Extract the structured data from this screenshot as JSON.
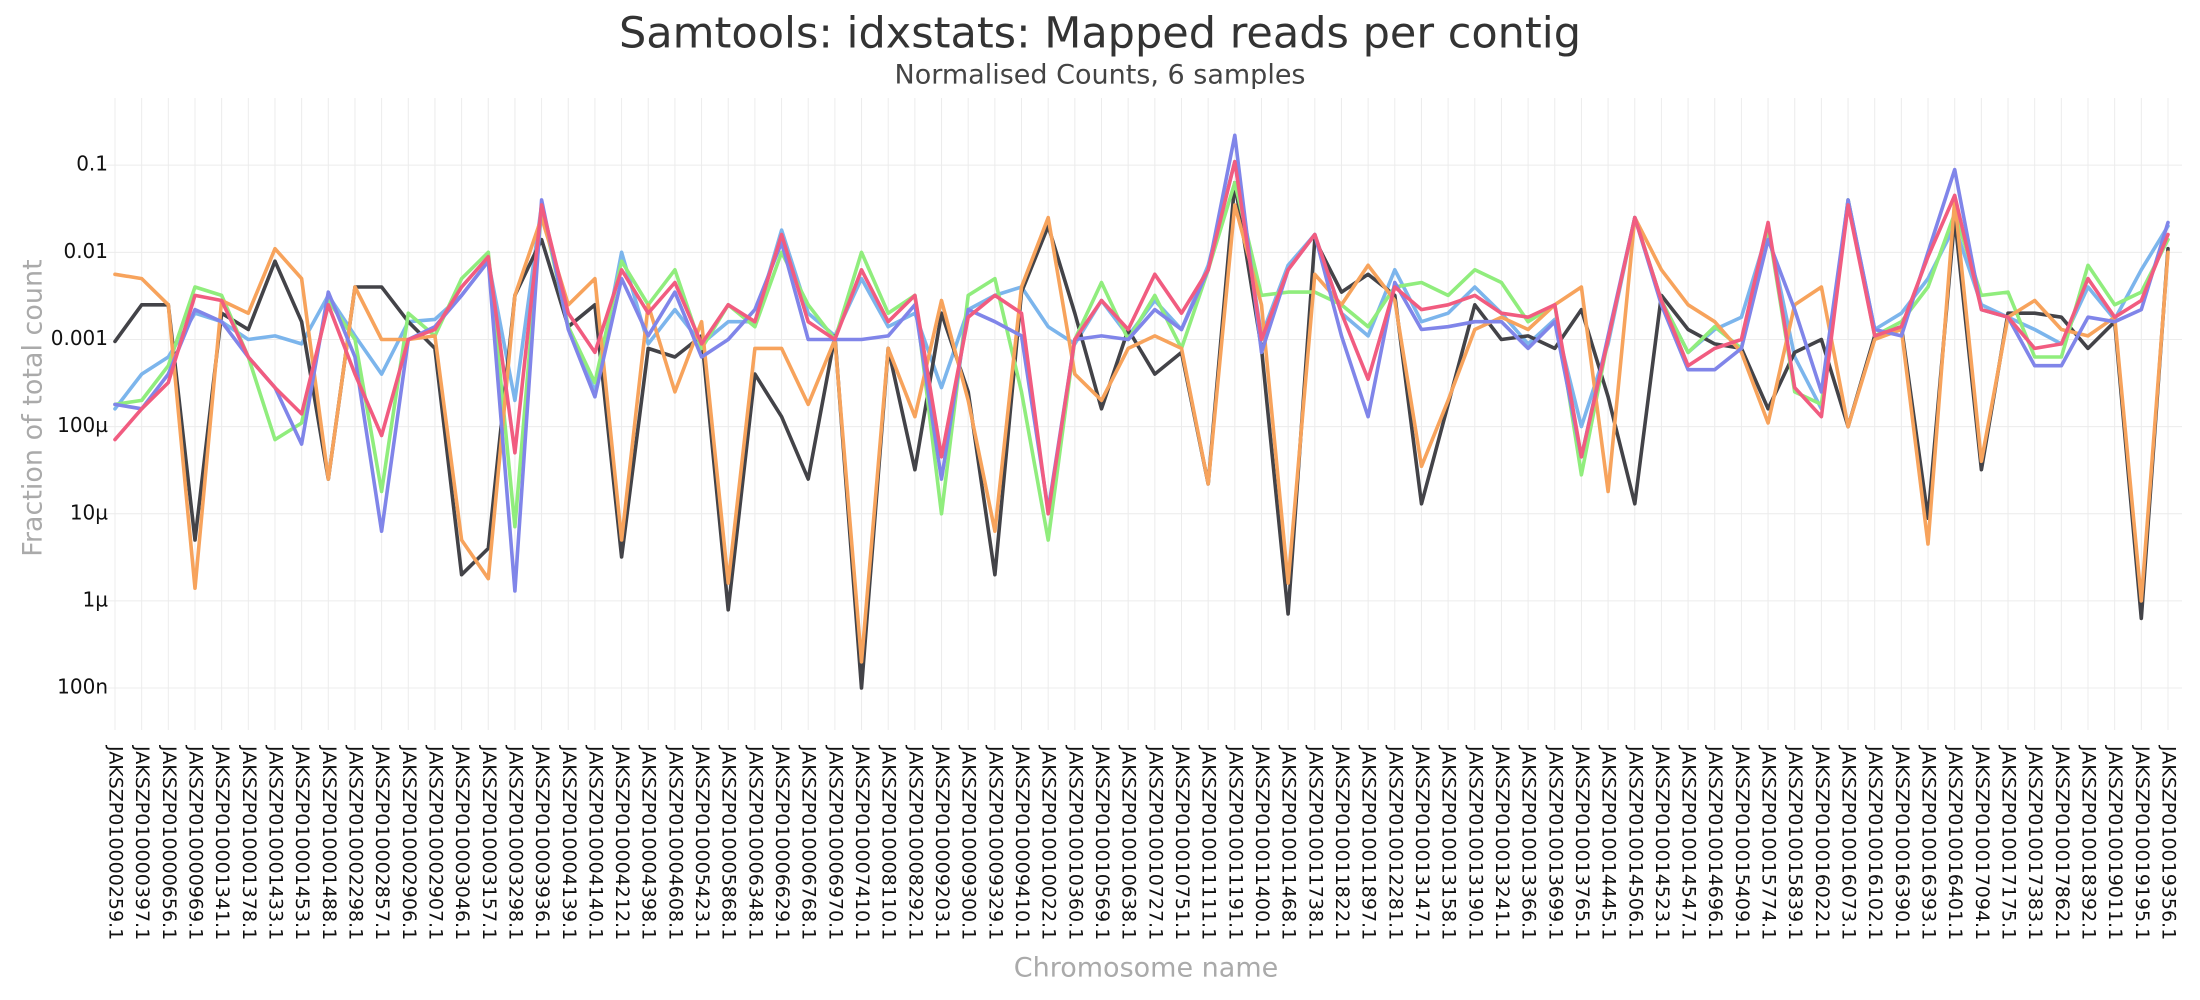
{
  "chart_data": {
    "type": "line",
    "title": "Samtools: idxstats: Mapped reads per contig",
    "subtitle": "Normalised Counts, 6 samples",
    "x_label": "Chromosome name",
    "y_label": "Fraction of total count",
    "ylog": true,
    "grid": true,
    "ylim": [
      3.3e-08,
      0.59
    ],
    "yticks": [
      0.1,
      0.01,
      0.001,
      {
        "value": 0.0001,
        "label": "100µ"
      },
      {
        "value": 1e-05,
        "label": "10µ"
      },
      {
        "value": 1e-06,
        "label": "1µ"
      },
      {
        "value": 1e-07,
        "label": "100n"
      }
    ],
    "categories": [
      "JAKSZP010000259.1",
      "JAKSZP010000397.1",
      "JAKSZP010000656.1",
      "JAKSZP010000969.1",
      "JAKSZP010001341.1",
      "JAKSZP010001378.1",
      "JAKSZP010001433.1",
      "JAKSZP010001453.1",
      "JAKSZP010001488.1",
      "JAKSZP010002298.1",
      "JAKSZP010002857.1",
      "JAKSZP010002906.1",
      "JAKSZP010002907.1",
      "JAKSZP010003046.1",
      "JAKSZP010003157.1",
      "JAKSZP010003298.1",
      "JAKSZP010003936.1",
      "JAKSZP010004139.1",
      "JAKSZP010004140.1",
      "JAKSZP010004212.1",
      "JAKSZP010004398.1",
      "JAKSZP010004608.1",
      "JAKSZP010005423.1",
      "JAKSZP010005868.1",
      "JAKSZP010006348.1",
      "JAKSZP010006629.1",
      "JAKSZP010006768.1",
      "JAKSZP010006970.1",
      "JAKSZP010007410.1",
      "JAKSZP010008110.1",
      "JAKSZP010008292.1",
      "JAKSZP010009203.1",
      "JAKSZP010009300.1",
      "JAKSZP010009329.1",
      "JAKSZP010009410.1",
      "JAKSZP010010022.1",
      "JAKSZP010010360.1",
      "JAKSZP010010569.1",
      "JAKSZP010010638.1",
      "JAKSZP010010727.1",
      "JAKSZP010010751.1",
      "JAKSZP010011111.1",
      "JAKSZP010011191.1",
      "JAKSZP010011400.1",
      "JAKSZP010011468.1",
      "JAKSZP010011738.1",
      "JAKSZP010011822.1",
      "JAKSZP010011897.1",
      "JAKSZP010012281.1",
      "JAKSZP010013147.1",
      "JAKSZP010013158.1",
      "JAKSZP010013190.1",
      "JAKSZP010013241.1",
      "JAKSZP010013366.1",
      "JAKSZP010013699.1",
      "JAKSZP010013765.1",
      "JAKSZP010014445.1",
      "JAKSZP010014506.1",
      "JAKSZP010014523.1",
      "JAKSZP010014547.1",
      "JAKSZP010014696.1",
      "JAKSZP010015409.1",
      "JAKSZP010015774.1",
      "JAKSZP010015839.1",
      "JAKSZP010016022.1",
      "JAKSZP010016073.1",
      "JAKSZP010016102.1",
      "JAKSZP010016390.1",
      "JAKSZP010016393.1",
      "JAKSZP010016401.1",
      "JAKSZP010017094.1",
      "JAKSZP010017175.1",
      "JAKSZP010017383.1",
      "JAKSZP010017862.1",
      "JAKSZP010018392.1",
      "JAKSZP010019011.1",
      "JAKSZP010019195.1",
      "JAKSZP010019356.1"
    ],
    "series": [
      {
        "color": "#7cb5ec",
        "values": [
          0.00016,
          0.0004,
          0.00063,
          0.002,
          0.0016,
          0.001,
          0.0011,
          0.00089,
          0.0032,
          0.0011,
          0.0004,
          0.0016,
          0.0017,
          0.0032,
          0.0079,
          0.0002,
          0.035,
          0.0014,
          0.00025,
          0.01,
          0.00089,
          0.0022,
          0.00089,
          0.0016,
          0.0016,
          0.018,
          0.002,
          0.0011,
          0.005,
          0.0014,
          0.002,
          0.00028,
          0.0022,
          0.0032,
          0.004,
          0.0014,
          0.00089,
          0.0028,
          0.0011,
          0.0028,
          0.0013,
          0.0071,
          0.11,
          0.0011,
          0.0071,
          0.016,
          0.002,
          0.0011,
          0.0063,
          0.0016,
          0.002,
          0.004,
          0.002,
          0.00089,
          0.0017,
          0.0001,
          0.00089,
          0.025,
          0.0028,
          0.00071,
          0.0013,
          0.0018,
          0.018,
          0.00063,
          0.00016,
          0.04,
          0.0013,
          0.002,
          0.005,
          0.02,
          0.0025,
          0.0018,
          0.0013,
          0.00089,
          0.004,
          0.0017,
          0.0063,
          0.02
        ]
      },
      {
        "color": "#434348",
        "values": [
          0.00095,
          0.0025,
          0.0025,
          5e-06,
          0.002,
          0.0013,
          0.0079,
          0.0016,
          2.5e-05,
          0.004,
          0.004,
          0.0016,
          0.00079,
          2e-06,
          4e-06,
          0.0032,
          0.014,
          0.0014,
          0.0025,
          3.2e-06,
          0.00079,
          0.00063,
          0.0011,
          7.9e-07,
          0.0004,
          0.00013,
          2.5e-05,
          0.0011,
          1e-07,
          0.00079,
          3.2e-05,
          0.002,
          0.00025,
          2e-06,
          0.0035,
          0.02,
          0.002,
          0.00016,
          0.0013,
          0.0004,
          0.00071,
          2.2e-05,
          0.063,
          0.00079,
          7.1e-07,
          0.014,
          0.0035,
          0.0056,
          0.0032,
          1.3e-05,
          0.00018,
          0.0025,
          0.001,
          0.0011,
          0.00079,
          0.0022,
          0.00022,
          1.3e-05,
          0.0032,
          0.0013,
          0.00089,
          0.00079,
          0.00016,
          0.00071,
          0.001,
          0.0001,
          0.0011,
          0.0014,
          8.9e-06,
          0.025,
          3.2e-05,
          0.002,
          0.002,
          0.0018,
          0.00079,
          0.0016,
          6.3e-07,
          0.011
        ]
      },
      {
        "color": "#90ed7d",
        "values": [
          0.00018,
          0.0002,
          0.0005,
          0.004,
          0.0032,
          0.00063,
          7.1e-05,
          0.00011,
          0.0028,
          0.001,
          1.8e-05,
          0.002,
          0.0011,
          0.005,
          0.01,
          7.1e-06,
          0.032,
          0.0014,
          0.00032,
          0.0079,
          0.0025,
          0.0063,
          0.00079,
          0.0025,
          0.0014,
          0.01,
          0.0025,
          0.001,
          0.01,
          0.002,
          0.0032,
          1e-05,
          0.0032,
          0.005,
          0.00025,
          5e-06,
          0.001,
          0.0045,
          0.001,
          0.0032,
          0.00079,
          0.0063,
          0.063,
          0.0032,
          0.0035,
          0.0035,
          0.0025,
          0.0014,
          0.004,
          0.0045,
          0.0032,
          0.0063,
          0.0045,
          0.0016,
          0.0025,
          2.8e-05,
          0.001,
          0.025,
          0.0028,
          0.00071,
          0.0014,
          0.00079,
          0.02,
          0.00025,
          0.00018,
          0.04,
          0.0011,
          0.0016,
          0.004,
          0.028,
          0.0032,
          0.0035,
          0.00063,
          0.00063,
          0.0071,
          0.0025,
          0.0035,
          0.014
        ]
      },
      {
        "color": "#f7a35c",
        "values": [
          0.0056,
          0.005,
          0.0025,
          1.4e-06,
          0.0028,
          0.002,
          0.011,
          0.005,
          2.5e-05,
          0.004,
          0.001,
          0.001,
          0.0011,
          5e-06,
          1.8e-06,
          0.0032,
          0.025,
          0.0025,
          0.005,
          5e-06,
          0.0025,
          0.00025,
          0.0016,
          1.6e-06,
          0.00079,
          0.00079,
          0.00018,
          0.001,
          2e-07,
          0.00079,
          0.00013,
          0.0028,
          0.0002,
          6.3e-06,
          0.004,
          0.025,
          0.0004,
          0.0002,
          0.00079,
          0.0011,
          0.00079,
          2.2e-05,
          0.035,
          0.0025,
          1.6e-06,
          0.0056,
          0.0025,
          0.0071,
          0.0028,
          3.5e-05,
          0.0002,
          0.0013,
          0.0018,
          0.0013,
          0.0025,
          0.004,
          1.8e-05,
          0.025,
          0.0063,
          0.0025,
          0.0016,
          0.00071,
          0.00011,
          0.0025,
          0.004,
          0.0001,
          0.001,
          0.0013,
          4.5e-06,
          0.04,
          4e-05,
          0.0018,
          0.0028,
          0.0013,
          0.0011,
          0.0018,
          1e-06,
          0.01
        ]
      },
      {
        "color": "#8085e9",
        "values": [
          0.00018,
          0.00016,
          0.0004,
          0.0022,
          0.0016,
          0.00063,
          0.00028,
          6.3e-05,
          0.0035,
          0.00063,
          6.3e-06,
          0.001,
          0.0014,
          0.0032,
          0.0079,
          1.3e-06,
          0.04,
          0.0013,
          0.00022,
          0.005,
          0.0011,
          0.0035,
          0.00063,
          0.001,
          0.0022,
          0.013,
          0.001,
          0.001,
          0.001,
          0.0011,
          0.0025,
          2.5e-05,
          0.0022,
          0.0016,
          0.0011,
          1.1e-05,
          0.001,
          0.0011,
          0.001,
          0.0022,
          0.0013,
          0.0063,
          0.22,
          0.00071,
          0.0063,
          0.016,
          0.0011,
          0.00013,
          0.0045,
          0.0013,
          0.0014,
          0.0016,
          0.0016,
          0.00079,
          0.0016,
          4.5e-05,
          0.0011,
          0.025,
          0.0025,
          0.00045,
          0.00045,
          0.00079,
          0.014,
          0.0022,
          0.00025,
          0.04,
          0.0013,
          0.0011,
          0.01,
          0.089,
          0.0022,
          0.0018,
          0.0005,
          0.0005,
          0.0018,
          0.0016,
          0.0022,
          0.022
        ]
      },
      {
        "color": "#f15c80",
        "values": [
          7.1e-05,
          0.00016,
          0.00032,
          0.0032,
          0.0028,
          0.00063,
          0.00028,
          0.00014,
          0.0025,
          0.0004,
          7.9e-05,
          0.001,
          0.0013,
          0.004,
          0.0089,
          5e-05,
          0.035,
          0.002,
          0.00071,
          0.0063,
          0.002,
          0.0045,
          0.00089,
          0.0025,
          0.0016,
          0.016,
          0.0016,
          0.001,
          0.0063,
          0.0016,
          0.0032,
          4.5e-05,
          0.0018,
          0.0032,
          0.002,
          1e-05,
          0.001,
          0.0028,
          0.0013,
          0.0056,
          0.002,
          0.0063,
          0.11,
          0.001,
          0.0063,
          0.016,
          0.002,
          0.00035,
          0.004,
          0.0022,
          0.0025,
          0.0032,
          0.002,
          0.0018,
          0.0025,
          4.5e-05,
          0.001,
          0.025,
          0.0028,
          0.0005,
          0.00079,
          0.001,
          0.022,
          0.00028,
          0.00013,
          0.035,
          0.0011,
          0.0014,
          0.0089,
          0.045,
          0.0022,
          0.0018,
          0.00079,
          0.00089,
          0.005,
          0.0018,
          0.0028,
          0.016
        ]
      }
    ]
  }
}
